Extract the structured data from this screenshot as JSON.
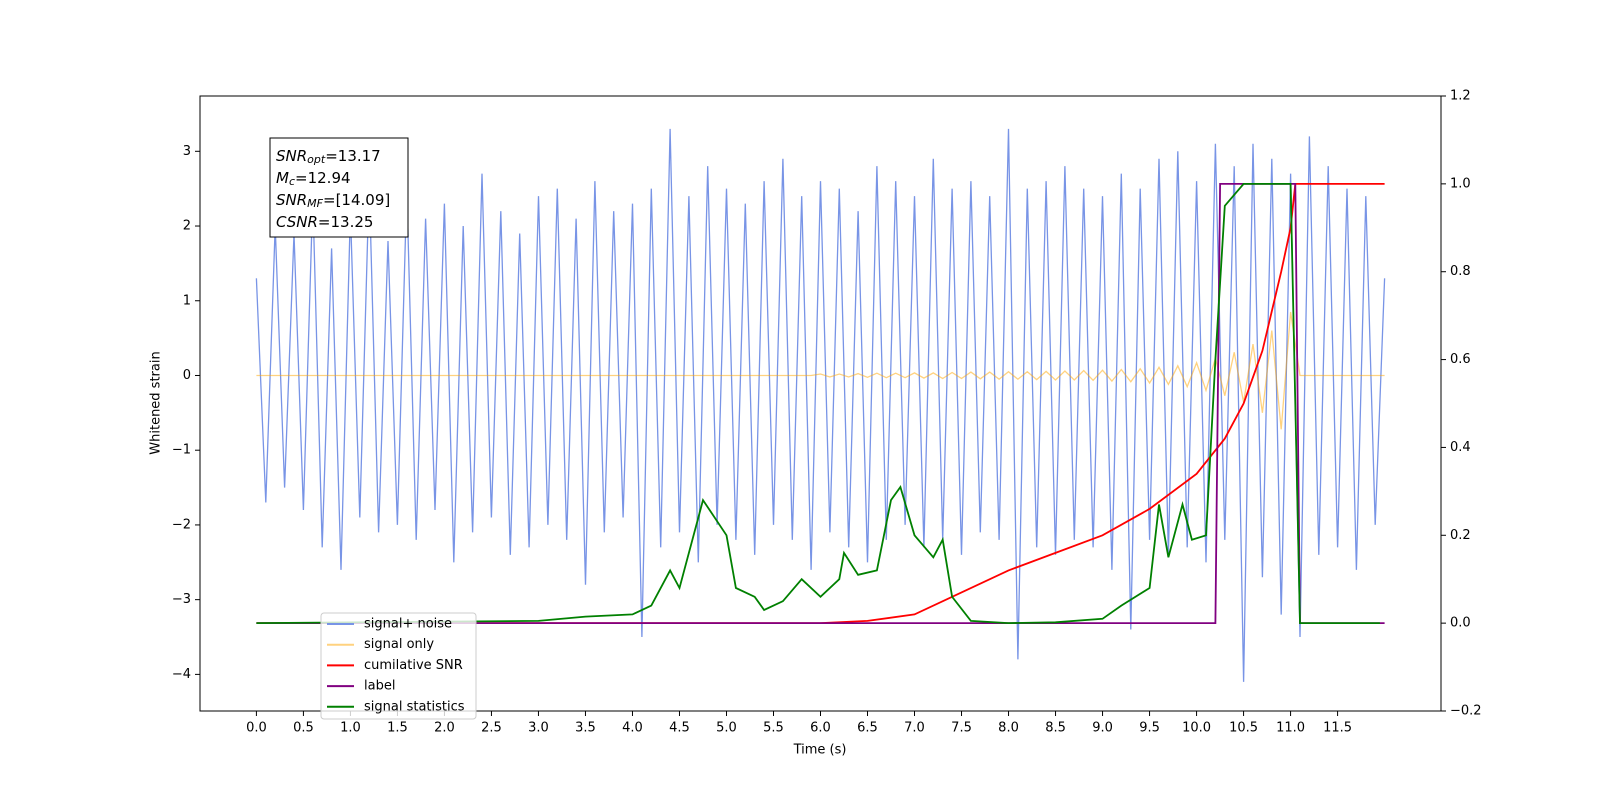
{
  "chart_data": {
    "type": "line",
    "xlabel": "Time (s)",
    "ylabel": "Whitened strain",
    "annotation": [
      {
        "symbol": "SNR",
        "subscript": "opt",
        "text": "=13.17"
      },
      {
        "symbol": "M",
        "subscript": "c",
        "text": "=12.94"
      },
      {
        "symbol": "SNR",
        "subscript": "MF",
        "text": "=[14.09]"
      },
      {
        "symbol": "CSNR",
        "text": "=13.25"
      }
    ],
    "legend": "lower left",
    "xlim": [
      -0.6,
      12.6
    ],
    "xticks": [
      {
        "value": 0,
        "label": "0.0"
      },
      0.5,
      {
        "value": 1,
        "label": "1.0"
      },
      1.5,
      {
        "value": 2,
        "label": "2.0"
      },
      2.5,
      {
        "value": 3,
        "label": "3.0"
      },
      3.5,
      {
        "value": 4,
        "label": "4.0"
      },
      4.5,
      {
        "value": 5,
        "label": "5.0"
      },
      5.5,
      {
        "value": 6,
        "label": "6.0"
      },
      6.5,
      {
        "value": 7,
        "label": "7.0"
      },
      7.5,
      {
        "value": 8,
        "label": "8.0"
      },
      8.5,
      {
        "value": 9,
        "label": "9.0"
      },
      9.5,
      {
        "value": 10,
        "label": "10.0"
      },
      10.5,
      {
        "value": 11,
        "label": "11.0"
      },
      11.5
    ],
    "ylim": [
      -4.49,
      3.74
    ],
    "yticks": [
      {
        "value": -4,
        "label": "−4"
      },
      {
        "value": -3,
        "label": "−3"
      },
      {
        "value": -2,
        "label": "−2"
      },
      {
        "value": -1,
        "label": "−1"
      },
      0,
      1,
      2,
      3
    ],
    "y2lim": [
      -0.2,
      1.2
    ],
    "y2ticks": [
      {
        "value": -0.2,
        "label": "−0.2"
      },
      {
        "value": 0,
        "label": "0.0"
      },
      0.2,
      0.4,
      0.6,
      0.8,
      {
        "value": 1,
        "label": "1.0"
      },
      {
        "value": 1.2,
        "label": "1.2"
      }
    ],
    "x": [
      0,
      0.1,
      0.2,
      0.3,
      0.4,
      0.5,
      0.6,
      0.7,
      0.8,
      0.9,
      1,
      1.1,
      1.2,
      1.3,
      1.4,
      1.5,
      1.6,
      1.7,
      1.8,
      1.9,
      2,
      2.1,
      2.2,
      2.3,
      2.4,
      2.5,
      2.6,
      2.7,
      2.8,
      2.9,
      3,
      3.1,
      3.2,
      3.3,
      3.4,
      3.5,
      3.6,
      3.7,
      3.8,
      3.9,
      4,
      4.1,
      4.2,
      4.3,
      4.4,
      4.5,
      4.6,
      4.7,
      4.8,
      4.9,
      5,
      5.1,
      5.2,
      5.3,
      5.4,
      5.5,
      5.6,
      5.7,
      5.8,
      5.9,
      6,
      6.1,
      6.2,
      6.3,
      6.4,
      6.5,
      6.6,
      6.7,
      6.8,
      6.9,
      7,
      7.1,
      7.2,
      7.3,
      7.4,
      7.5,
      7.6,
      7.7,
      7.8,
      7.9,
      8,
      8.1,
      8.2,
      8.3,
      8.4,
      8.5,
      8.6,
      8.7,
      8.8,
      8.9,
      9,
      9.1,
      9.2,
      9.3,
      9.4,
      9.5,
      9.6,
      9.7,
      9.8,
      9.9,
      10,
      10.1,
      10.2,
      10.3,
      10.4,
      10.5,
      10.6,
      10.7,
      10.8,
      10.9,
      11,
      11.1,
      11.2,
      11.3,
      11.4,
      11.5,
      11.6,
      11.7,
      11.8,
      11.9,
      12
    ],
    "series": [
      {
        "name": "signal+ noise",
        "color": "#7894e6",
        "values": [
          1.3,
          -1.7,
          2.0,
          -1.5,
          1.9,
          -1.8,
          2.4,
          -2.3,
          1.7,
          -2.6,
          2.2,
          -1.9,
          2.6,
          -2.1,
          1.8,
          -2.0,
          2.5,
          -2.2,
          2.1,
          -1.8,
          2.3,
          -2.5,
          2.0,
          -2.1,
          2.7,
          -1.9,
          2.2,
          -2.4,
          1.9,
          -2.3,
          2.4,
          -2.0,
          2.5,
          -2.2,
          2.1,
          -2.8,
          2.6,
          -2.1,
          2.2,
          -1.9,
          2.3,
          -3.5,
          2.5,
          -2.3,
          3.3,
          -2.1,
          2.4,
          -2.5,
          2.8,
          -2.0,
          2.5,
          -2.2,
          2.3,
          -2.4,
          2.6,
          -2.0,
          2.9,
          -2.2,
          2.4,
          -2.6,
          2.6,
          -2.1,
          2.5,
          -2.3,
          2.2,
          -2.5,
          2.8,
          -2.2,
          2.6,
          -2.0,
          2.4,
          -2.3,
          2.9,
          -2.2,
          2.5,
          -2.4,
          2.6,
          -2.1,
          2.4,
          -2.2,
          3.3,
          -3.8,
          2.5,
          -2.3,
          2.6,
          -2.4,
          2.8,
          -2.2,
          2.5,
          -2.3,
          2.4,
          -2.6,
          2.7,
          -3.4,
          2.5,
          -2.2,
          2.9,
          -2.4,
          3.0,
          -2.3,
          2.6,
          -2.5,
          3.1,
          -2.2,
          2.8,
          -4.1,
          3.1,
          -2.7,
          2.9,
          -3.2,
          2.7,
          -3.5,
          3.2,
          -2.4,
          2.8,
          -2.3,
          2.5,
          -2.6,
          2.4,
          -2.0,
          1.3
        ]
      },
      {
        "name": "signal only",
        "color": "#ffa500",
        "values": [
          0,
          0,
          0,
          0,
          0,
          0,
          0,
          0,
          0,
          0,
          0,
          0,
          0,
          0,
          0,
          0,
          0,
          0,
          0,
          0,
          0,
          0,
          0,
          0,
          0,
          0,
          0,
          0,
          0,
          0,
          0,
          0,
          0,
          0,
          0,
          0,
          0,
          0,
          0,
          0,
          0,
          0,
          0,
          0,
          0,
          0,
          0,
          0,
          0,
          0,
          0,
          0,
          0,
          0,
          0,
          0,
          0,
          0,
          0,
          0,
          0.02,
          -0.02,
          0.02,
          -0.02,
          0.025,
          -0.025,
          0.03,
          -0.03,
          0.03,
          -0.03,
          0.035,
          -0.035,
          0.035,
          -0.04,
          0.04,
          -0.04,
          0.045,
          -0.045,
          0.045,
          -0.05,
          0.05,
          -0.05,
          0.05,
          -0.055,
          0.055,
          -0.06,
          0.06,
          -0.06,
          0.065,
          -0.065,
          0.07,
          -0.075,
          0.08,
          -0.085,
          0.09,
          -0.1,
          0.11,
          -0.12,
          0.13,
          -0.15,
          0.17,
          -0.2,
          0.23,
          -0.27,
          0.31,
          -0.36,
          0.42,
          -0.5,
          0.6,
          -0.72,
          0.85,
          0,
          0,
          0,
          0,
          0,
          0,
          0,
          0,
          0,
          0
        ]
      },
      {
        "name": "cumilative SNR",
        "color": "#ff0000",
        "axis": "y2",
        "x": [
          0,
          6,
          6.5,
          7,
          7.5,
          8,
          8.5,
          9,
          9.5,
          10,
          10.3,
          10.5,
          10.7,
          10.9,
          11,
          11.05,
          12
        ],
        "values": [
          0,
          0,
          0.005,
          0.02,
          0.07,
          0.12,
          0.16,
          0.2,
          0.26,
          0.34,
          0.42,
          0.5,
          0.62,
          0.8,
          0.9,
          1,
          1
        ]
      },
      {
        "name": "label",
        "color": "#800080",
        "axis": "y2",
        "x": [
          0,
          10.2,
          10.25,
          11.05,
          11.1,
          12
        ],
        "values": [
          0,
          0,
          1,
          1,
          0,
          0
        ]
      },
      {
        "name": "signal statistics",
        "color": "#008000",
        "axis": "y2",
        "x": [
          0,
          3,
          3.5,
          4,
          4.2,
          4.4,
          4.5,
          4.75,
          5,
          5.1,
          5.3,
          5.4,
          5.6,
          5.8,
          6,
          6.2,
          6.25,
          6.4,
          6.6,
          6.75,
          6.85,
          7,
          7.2,
          7.3,
          7.4,
          7.6,
          8,
          8.5,
          9,
          9.2,
          9.5,
          9.6,
          9.7,
          9.85,
          9.95,
          10.1,
          10.2,
          10.3,
          10.5,
          11,
          11.05,
          11.1,
          11.95
        ],
        "values": [
          0,
          0.005,
          0.015,
          0.02,
          0.04,
          0.12,
          0.08,
          0.28,
          0.2,
          0.08,
          0.06,
          0.03,
          0.05,
          0.1,
          0.06,
          0.1,
          0.16,
          0.11,
          0.12,
          0.28,
          0.31,
          0.2,
          0.15,
          0.19,
          0.06,
          0.005,
          0,
          0.002,
          0.01,
          0.04,
          0.08,
          0.27,
          0.15,
          0.27,
          0.19,
          0.2,
          0.6,
          0.95,
          1,
          1,
          0.5,
          0,
          0
        ]
      }
    ]
  }
}
